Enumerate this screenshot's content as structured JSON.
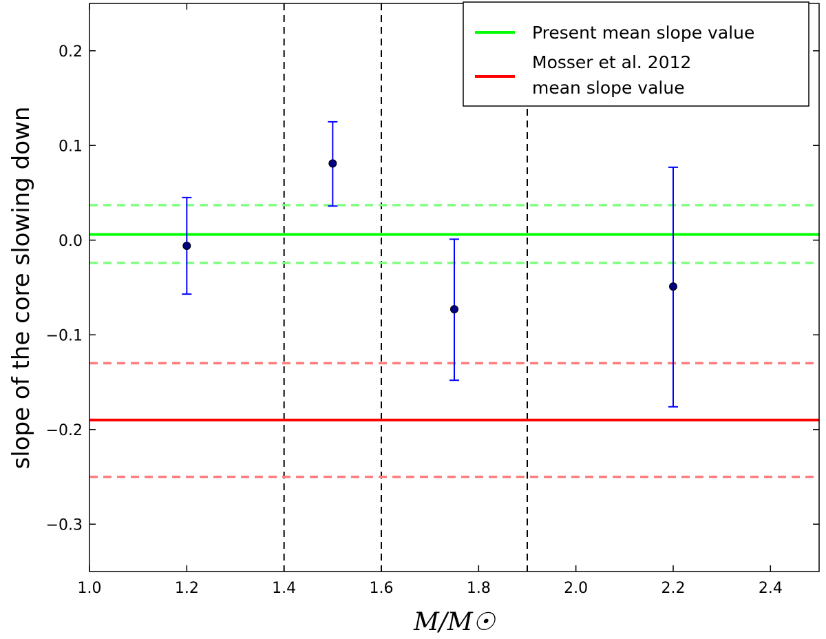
{
  "chart_data": {
    "type": "scatter",
    "title": "",
    "xlabel": "M/M☉",
    "ylabel": "slope of the core slowing down",
    "xlim": [
      1.0,
      2.5
    ],
    "ylim": [
      -0.35,
      0.25
    ],
    "xticks": [
      "1.0",
      "1.2",
      "1.4",
      "1.6",
      "1.8",
      "2.0",
      "2.2",
      "2.4"
    ],
    "xtick_values": [
      1.0,
      1.2,
      1.4,
      1.6,
      1.8,
      2.0,
      2.2,
      2.4
    ],
    "yticks": [
      "−0.3",
      "−0.2",
      "−0.1",
      "0.0",
      "0.1",
      "0.2"
    ],
    "ytick_values": [
      -0.3,
      -0.2,
      -0.1,
      0.0,
      0.1,
      0.2
    ],
    "grid": false,
    "points": {
      "x": [
        1.2,
        1.5,
        1.75,
        2.2
      ],
      "y": [
        -0.006,
        0.081,
        -0.073,
        -0.049
      ],
      "err_low": [
        -0.057,
        0.036,
        -0.148,
        -0.176
      ],
      "err_high": [
        0.045,
        0.125,
        0.001,
        0.077
      ],
      "color": "#0000ff",
      "marker_color": "#000080"
    },
    "hlines": [
      {
        "name": "Present mean slope value",
        "y": 0.006,
        "style": "solid",
        "color": "#00ff00"
      },
      {
        "name": "Present upper bound",
        "y": 0.037,
        "style": "dashed",
        "color": "#80ff80"
      },
      {
        "name": "Present lower bound",
        "y": -0.024,
        "style": "dashed",
        "color": "#80ff80"
      },
      {
        "name": "Mosser et al. 2012 mean slope value",
        "y": -0.19,
        "style": "solid",
        "color": "#ff0000"
      },
      {
        "name": "Mosser upper bound",
        "y": -0.13,
        "style": "dashed",
        "color": "#ff8080"
      },
      {
        "name": "Mosser lower bound",
        "y": -0.25,
        "style": "dashed",
        "color": "#ff8080"
      }
    ],
    "vlines": [
      1.4,
      1.6,
      1.9
    ],
    "legend": {
      "placement": "top-right",
      "entries": [
        {
          "lines": [
            "Present mean slope value"
          ],
          "color": "#00ff00"
        },
        {
          "lines": [
            "Mosser et al. 2012",
            "mean slope value"
          ],
          "color": "#ff0000"
        }
      ]
    }
  }
}
